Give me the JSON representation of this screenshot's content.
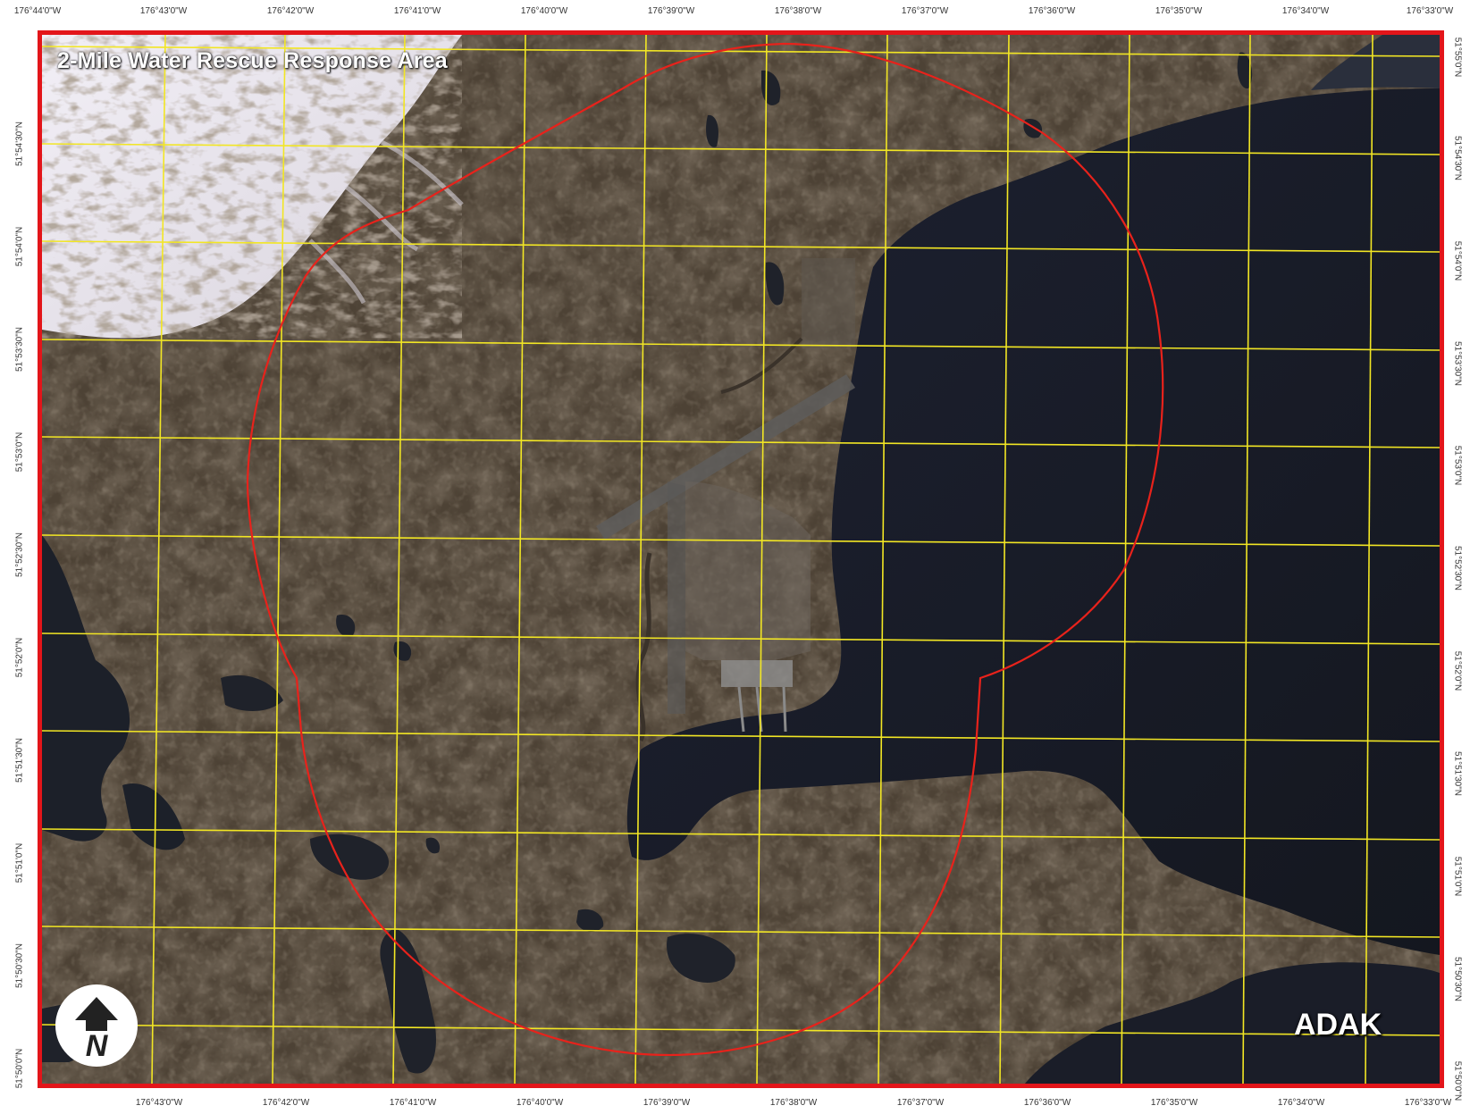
{
  "title": "2-Mile Water Rescue Response Area",
  "place_label": "ADAK",
  "north_arrow": {
    "icon": "north-arrow-icon",
    "letter": "N"
  },
  "colors": {
    "frame": "#e3151a",
    "grid": "#f2e624",
    "response_circle": "#e8221b",
    "land": "#4d4235",
    "water": "#1a1d2a",
    "snow": "#e9e6ee"
  },
  "graticule": {
    "longitude_labels_top": [
      "176°44'0\"W",
      "176°43'0\"W",
      "176°42'0\"W",
      "176°41'0\"W",
      "176°40'0\"W",
      "176°39'0\"W",
      "176°38'0\"W",
      "176°37'0\"W",
      "176°36'0\"W",
      "176°35'0\"W",
      "176°34'0\"W",
      "176°33'0\"W"
    ],
    "longitude_labels_bottom": [
      "176°43'0\"W",
      "176°42'0\"W",
      "176°41'0\"W",
      "176°40'0\"W",
      "176°39'0\"W",
      "176°38'0\"W",
      "176°37'0\"W",
      "176°36'0\"W",
      "176°35'0\"W",
      "176°34'0\"W",
      "176°33'0\"W"
    ],
    "latitude_labels_left": [
      "51°54'30\"N",
      "51°54'0\"N",
      "51°53'30\"N",
      "51°53'0\"N",
      "51°52'30\"N",
      "51°52'0\"N",
      "51°51'30\"N",
      "51°51'0\"N",
      "51°50'30\"N",
      "51°50'0\"N"
    ],
    "latitude_labels_right": [
      "51°55'0\"N",
      "51°54'30\"N",
      "51°54'0\"N",
      "51°53'30\"N",
      "51°53'0\"N",
      "51°52'30\"N",
      "51°52'0\"N",
      "51°51'30\"N",
      "51°51'0\"N",
      "51°50'30\"N",
      "51°50'0\"N"
    ]
  }
}
